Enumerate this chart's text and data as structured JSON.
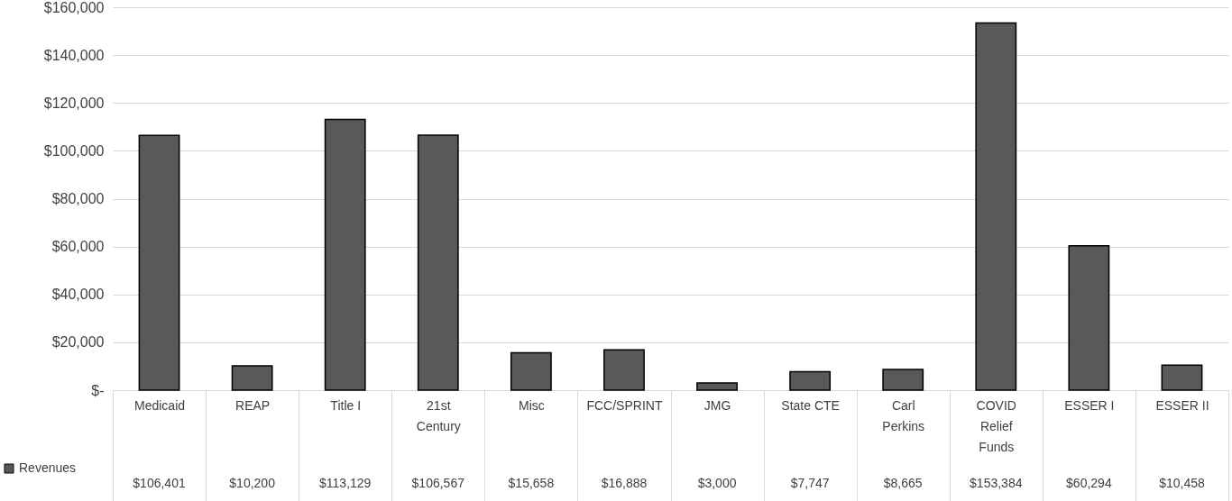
{
  "chart_data": {
    "type": "bar",
    "categories": [
      "Medicaid",
      "REAP",
      "Title I",
      "21st Century",
      "Misc",
      "FCC/SPRINT",
      "JMG",
      "State CTE",
      "Carl Perkins",
      "COVID Relief Funds",
      "ESSER I",
      "ESSER II"
    ],
    "series": [
      {
        "name": "Revenues",
        "color": "#595959",
        "values": [
          106401,
          10200,
          113129,
          106567,
          15658,
          16888,
          3000,
          7747,
          8665,
          153384,
          60294,
          10458
        ],
        "value_labels": [
          "$106,401",
          "$10,200",
          "$113,129",
          "$106,567",
          "$15,658",
          "$16,888",
          "$3,000",
          "$7,747",
          "$8,665",
          "$153,384",
          "$60,294",
          "$10,458"
        ]
      }
    ],
    "ylim": [
      0,
      160000
    ],
    "yticks": [
      {
        "value": 0,
        "label": "$-"
      },
      {
        "value": 20000,
        "label": "$20,000"
      },
      {
        "value": 40000,
        "label": "$40,000"
      },
      {
        "value": 60000,
        "label": "$60,000"
      },
      {
        "value": 80000,
        "label": "$80,000"
      },
      {
        "value": 100000,
        "label": "$100,000"
      },
      {
        "value": 120000,
        "label": "$120,000"
      },
      {
        "value": 140000,
        "label": "$140,000"
      },
      {
        "value": 160000,
        "label": "$160,000"
      }
    ],
    "grid": "y",
    "legend": "bottom"
  }
}
